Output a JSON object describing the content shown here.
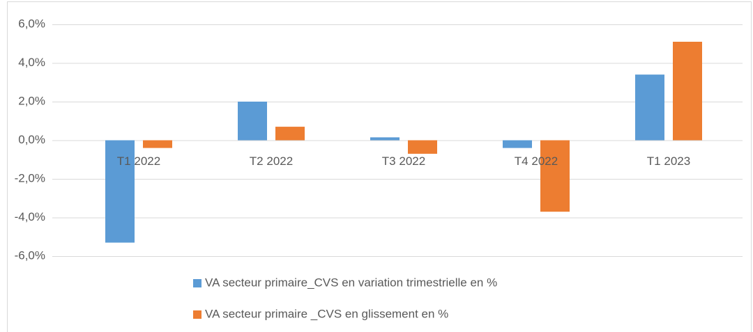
{
  "chart_data": {
    "type": "bar",
    "categories": [
      "T1 2022",
      "T2 2022",
      "T3 2022",
      "T4 2022",
      "T1 2023"
    ],
    "series": [
      {
        "name": "VA secteur primaire_CVS en variation trimestrielle en %",
        "color": "#5b9bd5",
        "values": [
          -5.3,
          2.0,
          0.15,
          -0.4,
          3.4
        ]
      },
      {
        "name": "VA secteur primaire _CVS en glissement en %",
        "color": "#ed7d31",
        "values": [
          -0.4,
          0.7,
          -0.7,
          -3.7,
          5.1
        ]
      }
    ],
    "ylim": [
      -6,
      6
    ],
    "yticks": [
      {
        "value": -6,
        "label": "-6,0%"
      },
      {
        "value": -4,
        "label": "-4,0%"
      },
      {
        "value": -2,
        "label": "-2,0%"
      },
      {
        "value": 0,
        "label": "0,0%"
      },
      {
        "value": 2,
        "label": "2,0%"
      },
      {
        "value": 4,
        "label": "4,0%"
      },
      {
        "value": 6,
        "label": "6,0%"
      }
    ],
    "grid": true,
    "legend": "bottom"
  }
}
